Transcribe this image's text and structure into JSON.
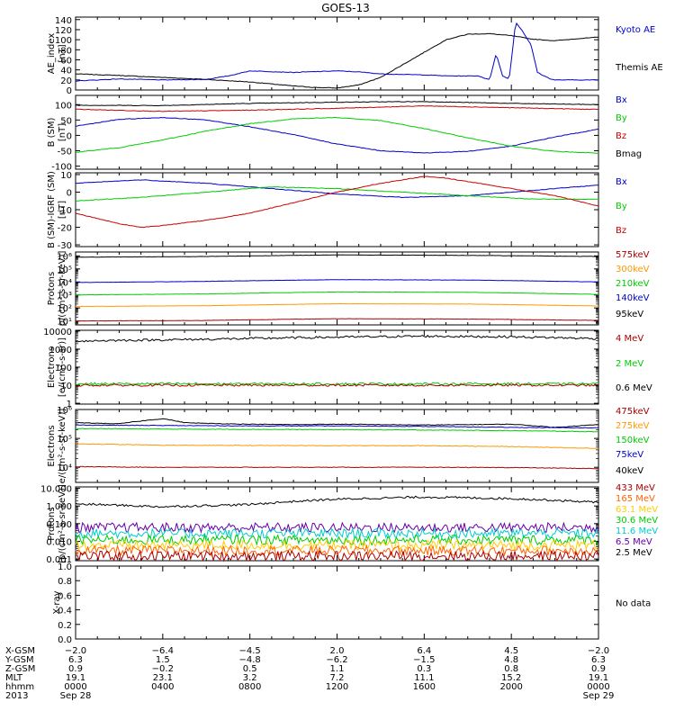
{
  "title": "GOES-13",
  "chart_data": [
    {
      "type": "line",
      "id": "ae",
      "ylabel": [
        "AE_index",
        "[nT]"
      ],
      "yticks": [
        "0",
        "20",
        "40",
        "60",
        "80",
        "100",
        "120",
        "140"
      ],
      "ylim": [
        0,
        145
      ],
      "yscale": "linear",
      "legend": [
        {
          "name": "Kyoto AE",
          "color": "#0000cc"
        },
        {
          "name": "Themis AE",
          "color": "#000000"
        }
      ],
      "series": [
        {
          "name": "Themis AE",
          "color": "#000000",
          "x": [
            0,
            2,
            4,
            6,
            8,
            9,
            10,
            11,
            12,
            13,
            14,
            15,
            16,
            17,
            18,
            19,
            20,
            21,
            22,
            23,
            24
          ],
          "y": [
            32,
            29,
            25,
            21,
            16,
            12,
            8,
            5,
            4,
            10,
            25,
            50,
            75,
            100,
            111,
            112,
            108,
            101,
            98,
            102,
            105
          ]
        },
        {
          "name": "Kyoto AE",
          "color": "#0000cc",
          "x": [
            0,
            2,
            4,
            6,
            7,
            8,
            10,
            12,
            13,
            14,
            16,
            17,
            18.5,
            19,
            19.3,
            19.6,
            19.9,
            20.2,
            20.5,
            20.9,
            21.2,
            21.5,
            21.8,
            22,
            24
          ],
          "y": [
            18,
            22,
            20,
            21,
            28,
            38,
            35,
            38,
            36,
            32,
            30,
            28,
            28,
            20,
            72,
            28,
            22,
            135,
            118,
            90,
            35,
            28,
            22,
            20,
            20
          ]
        }
      ]
    },
    {
      "type": "line",
      "id": "bsm",
      "ylabel": [
        "B (SM)",
        "[nT]"
      ],
      "yticks": [
        "-100",
        "-50",
        "0",
        "50",
        "100"
      ],
      "ylim": [
        -110,
        130
      ],
      "yscale": "linear",
      "legend": [
        {
          "name": "Bx",
          "color": "#0000cc"
        },
        {
          "name": "By",
          "color": "#00cc00"
        },
        {
          "name": "Bz",
          "color": "#cc0000"
        },
        {
          "name": "Bmag",
          "color": "#000000"
        }
      ],
      "series": [
        {
          "name": "Bmag",
          "color": "#000000",
          "x": [
            0,
            4,
            8,
            12,
            16,
            20,
            24
          ],
          "y": [
            98,
            97,
            104,
            108,
            110,
            104,
            100
          ]
        },
        {
          "name": "Bz",
          "color": "#cc0000",
          "x": [
            0,
            4,
            8,
            12,
            16,
            20,
            24
          ],
          "y": [
            85,
            78,
            82,
            88,
            96,
            90,
            84
          ]
        },
        {
          "name": "Bx",
          "color": "#0000cc",
          "x": [
            0,
            2,
            4,
            6,
            8,
            10,
            12,
            14,
            16,
            18,
            20,
            22,
            24
          ],
          "y": [
            30,
            52,
            58,
            50,
            28,
            2,
            -28,
            -50,
            -57,
            -52,
            -35,
            -5,
            20
          ]
        },
        {
          "name": "By",
          "color": "#00cc00",
          "x": [
            0,
            2,
            4,
            6,
            8,
            10,
            12,
            14,
            16,
            18,
            20,
            22,
            24
          ],
          "y": [
            -55,
            -40,
            -15,
            14,
            38,
            54,
            58,
            48,
            22,
            -8,
            -35,
            -52,
            -58
          ]
        }
      ]
    },
    {
      "type": "line",
      "id": "bsmigrf",
      "ylabel": [
        "B (SM)-IGRF (SM)",
        "[nT]"
      ],
      "yticks": [
        "-30",
        "-20",
        "-10",
        "0",
        "10"
      ],
      "ylim": [
        -31,
        11
      ],
      "yscale": "linear",
      "legend": [
        {
          "name": "Bx",
          "color": "#0000cc"
        },
        {
          "name": "By",
          "color": "#00cc00"
        },
        {
          "name": "Bz",
          "color": "#cc0000"
        }
      ],
      "series": [
        {
          "name": "Bx",
          "color": "#0000cc",
          "x": [
            0,
            3,
            6,
            9,
            12,
            15,
            18,
            21,
            24
          ],
          "y": [
            5,
            7,
            5,
            2,
            -1,
            -3,
            -2,
            1,
            4
          ]
        },
        {
          "name": "By",
          "color": "#00cc00",
          "x": [
            0,
            3,
            6,
            9,
            12,
            15,
            18,
            21,
            24
          ],
          "y": [
            -5,
            -3,
            0,
            3,
            2,
            0,
            -2,
            -4,
            -4
          ]
        },
        {
          "name": "Bz",
          "color": "#cc0000",
          "x": [
            0,
            2,
            3,
            4,
            6,
            8,
            10,
            12,
            14,
            16,
            17,
            18,
            19,
            20,
            22,
            24
          ],
          "y": [
            -12,
            -18,
            -20,
            -19,
            -16,
            -12,
            -6,
            0,
            5,
            9,
            8,
            6,
            4,
            2,
            -2,
            -8
          ]
        }
      ]
    },
    {
      "type": "line",
      "id": "protons1",
      "ylabel": [
        "Protons",
        "p/(cm²-s-sr-keV)]"
      ],
      "yticks": [
        "10¹",
        "10²",
        "10³",
        "10⁴",
        "10⁵",
        "10⁶"
      ],
      "ylim": [
        5,
        2000000
      ],
      "yscale": "log",
      "legend": [
        {
          "name": "575keV",
          "color": "#aa0000"
        },
        {
          "name": "300keV",
          "color": "#ff9900"
        },
        {
          "name": "210keV",
          "color": "#00cc00"
        },
        {
          "name": "140keV",
          "color": "#0000cc"
        },
        {
          "name": "95keV",
          "color": "#000000"
        }
      ],
      "series": [
        {
          "name": "95keV",
          "color": "#000000",
          "x": [
            0,
            6,
            12,
            18,
            24
          ],
          "y": [
            800000,
            900000,
            1200000,
            1100000,
            900000
          ]
        },
        {
          "name": "140keV",
          "color": "#0000cc",
          "x": [
            0,
            6,
            12,
            18,
            24
          ],
          "y": [
            9000,
            11000,
            15000,
            14000,
            10000
          ]
        },
        {
          "name": "210keV",
          "color": "#00cc00",
          "x": [
            0,
            6,
            12,
            18,
            24
          ],
          "y": [
            1000,
            1200,
            1700,
            1600,
            1100
          ]
        },
        {
          "name": "300keV",
          "color": "#ff9900",
          "x": [
            0,
            6,
            12,
            18,
            24
          ],
          "y": [
            130,
            150,
            210,
            200,
            140
          ]
        },
        {
          "name": "575keV",
          "color": "#aa0000",
          "x": [
            0,
            6,
            12,
            18,
            24
          ],
          "y": [
            10,
            11,
            15,
            14,
            11
          ]
        }
      ]
    },
    {
      "type": "line",
      "id": "electrons1",
      "ylabel": [
        "Electrons",
        "[e/(cm²-s-sr)]"
      ],
      "yticks": [
        "1",
        "10",
        "100",
        "1000",
        "10000"
      ],
      "ylim": [
        0.9,
        11000
      ],
      "yscale": "log",
      "legend": [
        {
          "name": "4 MeV",
          "color": "#aa0000"
        },
        {
          "name": "2 MeV",
          "color": "#00cc00"
        },
        {
          "name": "0.6 MeV",
          "color": "#000000"
        }
      ],
      "series": [
        {
          "name": "0.6 MeV",
          "color": "#000000",
          "x": [
            0,
            6,
            12,
            16,
            20,
            24
          ],
          "y": [
            2800,
            3500,
            4600,
            5200,
            4800,
            3800
          ]
        },
        {
          "name": "2 MeV",
          "color": "#00cc00",
          "x": [
            0,
            6,
            12,
            18,
            24
          ],
          "y": [
            12,
            12,
            12,
            12,
            12
          ]
        },
        {
          "name": "4 MeV",
          "color": "#aa0000",
          "x": [
            0,
            6,
            12,
            18,
            24
          ],
          "y": [
            10,
            10,
            10,
            10,
            10
          ]
        }
      ]
    },
    {
      "type": "line",
      "id": "electrons2",
      "ylabel": [
        "Electrons",
        "e/(cm²-s-sr-keV)]"
      ],
      "yticks": [
        "10⁴",
        "10⁵",
        "10⁶"
      ],
      "ylim": [
        3000,
        1000000
      ],
      "yscale": "log",
      "legend": [
        {
          "name": "475keV",
          "color": "#aa0000"
        },
        {
          "name": "275keV",
          "color": "#ff9900"
        },
        {
          "name": "150keV",
          "color": "#00cc00"
        },
        {
          "name": "75keV",
          "color": "#0000cc"
        },
        {
          "name": "40keV",
          "color": "#000000"
        }
      ],
      "series": [
        {
          "name": "40keV",
          "color": "#000000",
          "x": [
            0,
            2,
            4,
            5,
            6,
            8,
            10,
            12,
            14,
            16,
            18,
            20,
            22,
            24
          ],
          "y": [
            350000,
            320000,
            480000,
            350000,
            330000,
            310000,
            300000,
            310000,
            300000,
            290000,
            300000,
            310000,
            240000,
            300000
          ]
        },
        {
          "name": "75keV",
          "color": "#0000cc",
          "x": [
            0,
            4,
            8,
            12,
            16,
            20,
            24
          ],
          "y": [
            290000,
            280000,
            270000,
            270000,
            260000,
            240000,
            230000
          ]
        },
        {
          "name": "150keV",
          "color": "#00cc00",
          "x": [
            0,
            4,
            8,
            12,
            16,
            20,
            24
          ],
          "y": [
            220000,
            210000,
            205000,
            200000,
            195000,
            185000,
            170000
          ]
        },
        {
          "name": "275keV",
          "color": "#ff9900",
          "x": [
            0,
            4,
            8,
            12,
            16,
            20,
            24
          ],
          "y": [
            65000,
            58000,
            57000,
            56000,
            56000,
            52000,
            45000
          ]
        },
        {
          "name": "475keV",
          "color": "#aa0000",
          "x": [
            0,
            4,
            8,
            12,
            16,
            20,
            24
          ],
          "y": [
            10500,
            10000,
            10000,
            10000,
            10000,
            9800,
            9000
          ]
        }
      ]
    },
    {
      "type": "line",
      "id": "protons2",
      "ylabel": [
        "Protons",
        "[p/(cm²-s-sr-keV)]"
      ],
      "yticks": [
        "0.001",
        "0.010",
        "0.100",
        "1.000",
        "10.000"
      ],
      "ylim": [
        0.0008,
        12
      ],
      "yscale": "log",
      "legend": [
        {
          "name": "433 MeV",
          "color": "#aa0000"
        },
        {
          "name": "165 MeV",
          "color": "#ff6600"
        },
        {
          "name": "63.1 MeV",
          "color": "#ffcc00"
        },
        {
          "name": "30.6 MeV",
          "color": "#00cc00"
        },
        {
          "name": "11.6 MeV",
          "color": "#00cccc"
        },
        {
          "name": "6.5 MeV",
          "color": "#6600aa"
        },
        {
          "name": "2.5 MeV",
          "color": "#000000"
        }
      ],
      "series": [
        {
          "name": "2.5 MeV",
          "color": "#000000",
          "x": [
            0,
            4,
            8,
            12,
            16,
            20,
            24
          ],
          "y": [
            1.3,
            0.9,
            1.2,
            2.4,
            3.2,
            2.6,
            1.6
          ]
        },
        {
          "name": "6.5 MeV",
          "color": "#6600aa",
          "x": [
            0,
            12,
            24
          ],
          "y": [
            0.06,
            0.06,
            0.06
          ]
        },
        {
          "name": "11.6 MeV",
          "color": "#00cccc",
          "x": [
            0,
            12,
            24
          ],
          "y": [
            0.028,
            0.028,
            0.028
          ]
        },
        {
          "name": "30.6 MeV",
          "color": "#00cc00",
          "x": [
            0,
            12,
            24
          ],
          "y": [
            0.012,
            0.012,
            0.012
          ]
        },
        {
          "name": "63.1 MeV",
          "color": "#ffcc00",
          "x": [
            0,
            12,
            24
          ],
          "y": [
            0.006,
            0.006,
            0.006
          ]
        },
        {
          "name": "165 MeV",
          "color": "#ff6600",
          "x": [
            0,
            12,
            24
          ],
          "y": [
            0.003,
            0.003,
            0.003
          ]
        },
        {
          "name": "433 MeV",
          "color": "#aa0000",
          "x": [
            0,
            12,
            24
          ],
          "y": [
            0.0015,
            0.0015,
            0.0015
          ]
        }
      ]
    },
    {
      "type": "line",
      "id": "xray",
      "ylabel": [
        "X-ray",
        ""
      ],
      "yticks": [
        "0.0",
        "0.2",
        "0.4",
        "0.6",
        "0.8",
        "1.0"
      ],
      "ylim": [
        0,
        1
      ],
      "yscale": "linear",
      "legend": [],
      "nodata": "No data",
      "series": []
    }
  ],
  "xaxis": {
    "ticks_hours": [
      0,
      4,
      8,
      12,
      16,
      20,
      24
    ],
    "rows": [
      {
        "label": "X-GSM",
        "values": [
          "−2.0",
          "−6.4",
          "−4.5",
          "2.0",
          "6.4",
          "4.5",
          "−2.0"
        ]
      },
      {
        "label": "Y-GSM",
        "values": [
          "6.3",
          "1.5",
          "−4.8",
          "−6.2",
          "−1.5",
          "4.8",
          "6.3"
        ]
      },
      {
        "label": "Z-GSM",
        "values": [
          "0.9",
          "−0.2",
          "0.5",
          "1.1",
          "0.3",
          "0.8",
          "0.9"
        ]
      },
      {
        "label": "MLT",
        "values": [
          "19.1",
          "23.1",
          "3.2",
          "7.2",
          "11.1",
          "15.2",
          "19.1"
        ]
      },
      {
        "label": "hhmm",
        "values": [
          "0000",
          "0400",
          "0800",
          "1200",
          "1600",
          "2000",
          "0000"
        ]
      }
    ],
    "year": "2013",
    "date_start": "Sep 28",
    "date_end": "Sep 29"
  }
}
